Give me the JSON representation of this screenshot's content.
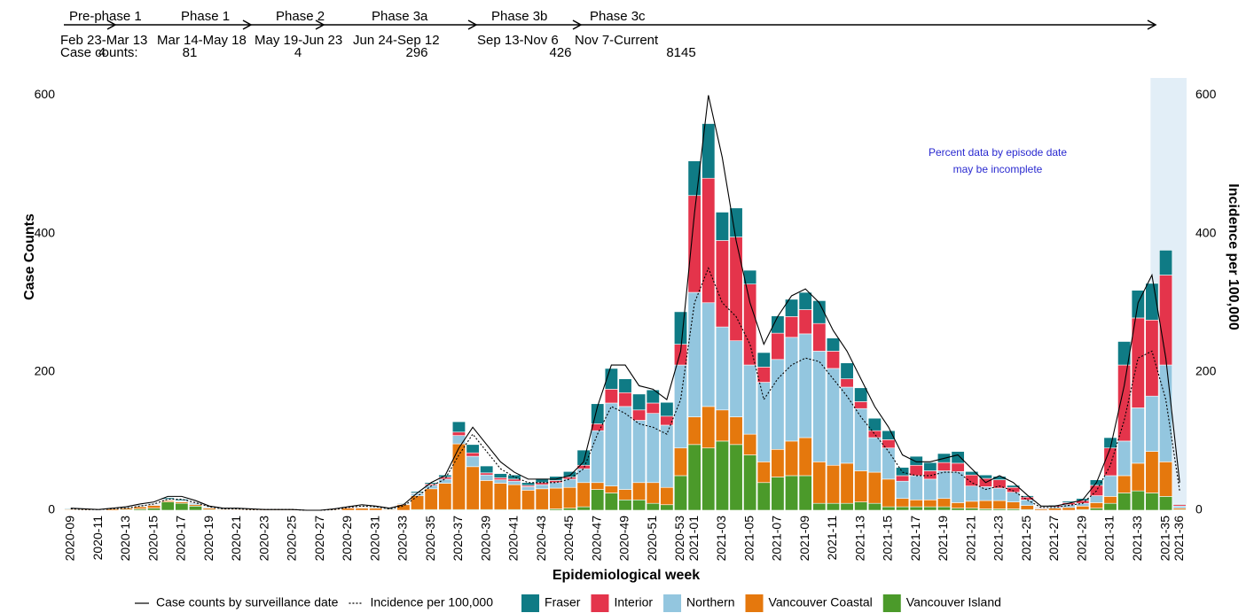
{
  "chart_data": {
    "type": "bar",
    "stacked": true,
    "x_label": "Epidemiological week",
    "y_label": "Case Counts",
    "y2_label": "Incidence per 100,000",
    "annotation": [
      "Percent data by episode date",
      "may be incomplete"
    ],
    "case_counts_label": "Case counts:",
    "phases": [
      {
        "name": "Pre-phase 1",
        "dates": "Feb 23-Mar 13",
        "count": 4
      },
      {
        "name": "Phase 1",
        "dates": "Mar 14-May 18",
        "count": 81
      },
      {
        "name": "Phase 2",
        "dates": "May 19-Jun 23",
        "count": 4
      },
      {
        "name": "Phase 3a",
        "dates": "Jun 24-Sep 12",
        "count": 296
      },
      {
        "name": "Phase 3b",
        "dates": "Sep 13-Nov 6",
        "count": 426
      },
      {
        "name": "Phase 3c",
        "dates": "Nov 7-Current",
        "count": 8145
      }
    ],
    "categories": [
      "2020-09",
      null,
      "2020-11",
      null,
      "2020-13",
      null,
      "2020-15",
      null,
      "2020-17",
      null,
      "2020-19",
      null,
      "2020-21",
      null,
      "2020-23",
      null,
      "2020-25",
      null,
      "2020-27",
      null,
      "2020-29",
      null,
      "2020-31",
      null,
      "2020-33",
      null,
      "2020-35",
      null,
      "2020-37",
      null,
      "2020-39",
      null,
      "2020-41",
      null,
      "2020-43",
      null,
      "2020-45",
      null,
      "2020-47",
      null,
      "2020-49",
      null,
      "2020-51",
      null,
      "2020-53",
      "2021-01",
      null,
      "2021-03",
      null,
      "2021-05",
      null,
      "2021-07",
      null,
      "2021-09",
      null,
      "2021-11",
      null,
      "2021-13",
      null,
      "2021-15",
      null,
      "2021-17",
      null,
      "2021-19",
      null,
      "2021-21",
      null,
      "2021-23",
      null,
      "2021-25",
      null,
      "2021-27",
      null,
      "2021-29",
      null,
      "2021-31",
      null,
      "2021-33",
      null,
      "2021-35",
      "2021-36"
    ],
    "series": [
      {
        "name": "Vancouver Island",
        "color": "#4b9a2a",
        "values": [
          0,
          0,
          0,
          0,
          1,
          2,
          3,
          12,
          10,
          6,
          1,
          0,
          0,
          0,
          0,
          0,
          0,
          0,
          0,
          0,
          0,
          0,
          0,
          0,
          0,
          1,
          1,
          1,
          1,
          1,
          1,
          1,
          1,
          1,
          1,
          2,
          3,
          5,
          30,
          25,
          15,
          15,
          10,
          8,
          50,
          95,
          90,
          100,
          95,
          80,
          40,
          48,
          50,
          50,
          10,
          10,
          10,
          12,
          10,
          5,
          5,
          5,
          5,
          5,
          3,
          3,
          2,
          2,
          2,
          1,
          0,
          0,
          0,
          1,
          3,
          10,
          25,
          28,
          25,
          20,
          1
        ]
      },
      {
        "name": "Vancouver Coastal",
        "color": "#e5780d",
        "values": [
          1,
          1,
          0,
          2,
          2,
          3,
          4,
          2,
          2,
          2,
          2,
          1,
          1,
          1,
          1,
          1,
          1,
          0,
          0,
          1,
          3,
          3,
          3,
          1,
          8,
          20,
          30,
          38,
          95,
          62,
          42,
          38,
          36,
          28,
          30,
          30,
          30,
          35,
          10,
          10,
          15,
          25,
          30,
          25,
          40,
          40,
          60,
          45,
          40,
          30,
          30,
          40,
          50,
          55,
          60,
          55,
          58,
          45,
          45,
          40,
          12,
          10,
          10,
          12,
          8,
          10,
          12,
          12,
          10,
          6,
          2,
          3,
          4,
          5,
          8,
          10,
          25,
          40,
          60,
          50,
          2
        ]
      },
      {
        "name": "Northern",
        "color": "#93c6df",
        "values": [
          1,
          0,
          0,
          0,
          0,
          1,
          1,
          1,
          1,
          2,
          1,
          1,
          1,
          0,
          0,
          0,
          0,
          0,
          0,
          0,
          0,
          1,
          1,
          0,
          0,
          3,
          5,
          6,
          12,
          15,
          8,
          5,
          5,
          5,
          6,
          8,
          12,
          20,
          75,
          120,
          120,
          90,
          100,
          90,
          120,
          180,
          150,
          120,
          110,
          100,
          115,
          130,
          150,
          150,
          160,
          140,
          110,
          90,
          50,
          45,
          25,
          35,
          30,
          40,
          45,
          22,
          20,
          18,
          14,
          8,
          1,
          2,
          4,
          4,
          10,
          30,
          50,
          80,
          80,
          140,
          3
        ]
      },
      {
        "name": "Interior",
        "color": "#e4344b",
        "values": [
          0,
          0,
          0,
          0,
          0,
          1,
          1,
          1,
          1,
          1,
          0,
          0,
          0,
          0,
          0,
          0,
          0,
          0,
          0,
          0,
          1,
          1,
          0,
          0,
          1,
          1,
          2,
          3,
          5,
          5,
          3,
          3,
          3,
          2,
          3,
          3,
          3,
          5,
          10,
          20,
          20,
          15,
          15,
          13,
          30,
          140,
          180,
          125,
          150,
          117,
          22,
          38,
          30,
          35,
          40,
          25,
          12,
          10,
          10,
          12,
          8,
          15,
          12,
          12,
          12,
          16,
          12,
          12,
          7,
          4,
          1,
          2,
          3,
          4,
          15,
          40,
          110,
          130,
          110,
          130,
          2
        ]
      },
      {
        "name": "Fraser",
        "color": "#0f7b85",
        "values": [
          1,
          1,
          0,
          1,
          1,
          1,
          1,
          2,
          2,
          1,
          1,
          1,
          1,
          0,
          0,
          0,
          0,
          0,
          0,
          0,
          1,
          1,
          1,
          1,
          1,
          2,
          2,
          3,
          15,
          12,
          10,
          6,
          6,
          4,
          6,
          6,
          8,
          22,
          29,
          30,
          20,
          23,
          19,
          20,
          47,
          50,
          79,
          41,
          42,
          20,
          21,
          25,
          25,
          25,
          33,
          19,
          23,
          20,
          18,
          13,
          12,
          13,
          12,
          13,
          17,
          5,
          5,
          5,
          3,
          2,
          1,
          1,
          2,
          3,
          8,
          15,
          34,
          40,
          53,
          36,
          1
        ]
      }
    ],
    "lines": [
      {
        "name": "Case counts by surveillance date",
        "color": "#000000",
        "dashed": false,
        "values": [
          3,
          2,
          1,
          3,
          5,
          9,
          12,
          20,
          20,
          14,
          6,
          3,
          3,
          2,
          1,
          1,
          1,
          0,
          0,
          2,
          5,
          8,
          6,
          3,
          8,
          25,
          40,
          50,
          90,
          120,
          95,
          70,
          55,
          45,
          45,
          45,
          50,
          70,
          150,
          210,
          210,
          180,
          175,
          160,
          230,
          430,
          600,
          510,
          390,
          300,
          240,
          280,
          310,
          320,
          300,
          260,
          230,
          190,
          150,
          120,
          80,
          70,
          70,
          75,
          80,
          60,
          40,
          50,
          40,
          22,
          6,
          6,
          10,
          15,
          40,
          90,
          180,
          300,
          340,
          220,
          40
        ]
      },
      {
        "name": "Incidence per 100,000",
        "color": "#000000",
        "dashed": true,
        "axis": "y2",
        "values": [
          2,
          1,
          1,
          2,
          3,
          6,
          9,
          16,
          16,
          11,
          5,
          2,
          2,
          1,
          1,
          1,
          1,
          0,
          0,
          1,
          4,
          6,
          5,
          2,
          6,
          20,
          35,
          45,
          80,
          110,
          85,
          60,
          48,
          40,
          40,
          40,
          45,
          60,
          110,
          150,
          140,
          125,
          120,
          110,
          160,
          300,
          350,
          300,
          280,
          240,
          160,
          190,
          210,
          220,
          215,
          190,
          165,
          135,
          110,
          85,
          55,
          50,
          50,
          55,
          55,
          40,
          30,
          35,
          28,
          15,
          4,
          4,
          7,
          10,
          28,
          65,
          130,
          220,
          230,
          160,
          28
        ]
      }
    ],
    "ylim": [
      0,
      625
    ],
    "yticks": [
      0,
      200,
      400,
      600
    ],
    "y2lim": [
      0,
      625
    ],
    "y2ticks": [
      0,
      200,
      400,
      600
    ]
  }
}
